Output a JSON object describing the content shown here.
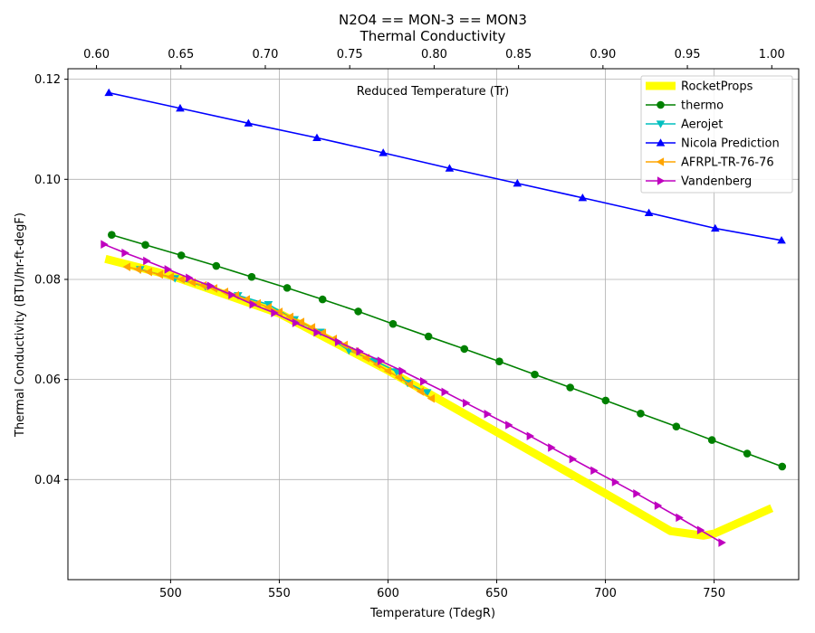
{
  "chart_data": {
    "type": "line",
    "title": [
      "N2O4 == MON-3 == MON3",
      "Thermal Conductivity"
    ],
    "xlabel": "Temperature (TdegR)",
    "ylabel": "Thermal Conductivity (BTU/hr-ft-degF)",
    "xlim": [
      452.77,
      788.9
    ],
    "ylim": [
      0.02,
      0.1221
    ],
    "xticks": [
      500,
      550,
      600,
      650,
      700,
      750
    ],
    "yticks": [
      0.04,
      0.06,
      0.08,
      0.1,
      0.12
    ],
    "top_axis": {
      "label": "Reduced Temperature (Tr)",
      "ticks": [
        "0.60",
        "0.65",
        "0.70",
        "0.75",
        "0.80",
        "0.85",
        "0.90",
        "0.95",
        "1.00"
      ],
      "tick_values": [
        0.6,
        0.65,
        0.7,
        0.75,
        0.8,
        0.85,
        0.9,
        0.95,
        1.0
      ],
      "tc_degR": 776.52
    },
    "grid": true,
    "legend_position": "top-right",
    "series": [
      {
        "name": "RocketProps",
        "color": "#ffff00",
        "marker": "none",
        "line_width": 9,
        "x": [
          470,
          500,
          550,
          600,
          650,
          700,
          730,
          745,
          750,
          776.5
        ],
        "y": [
          0.0841,
          0.0808,
          0.0732,
          0.0618,
          0.0495,
          0.0372,
          0.0297,
          0.0288,
          0.0292,
          0.0343
        ]
      },
      {
        "name": "thermo",
        "color": "#008000",
        "marker": "circle",
        "x": [
          472.9,
          488.4,
          504.9,
          521.0,
          537.3,
          553.6,
          569.9,
          586.3,
          602.3,
          618.6,
          635.1,
          651.2,
          667.5,
          683.8,
          700.1,
          716.2,
          732.6,
          749.0,
          765.2,
          781.3
        ],
        "y": [
          0.0889,
          0.0869,
          0.0848,
          0.0827,
          0.0805,
          0.0783,
          0.076,
          0.0736,
          0.0711,
          0.0686,
          0.0661,
          0.0636,
          0.061,
          0.0584,
          0.0558,
          0.0532,
          0.0506,
          0.0479,
          0.0452,
          0.0426
        ]
      },
      {
        "name": "Aerojet",
        "color": "#00bfbf",
        "marker": "triangle-down",
        "x": [
          486,
          502,
          516,
          531,
          545,
          557,
          569,
          582,
          594,
          604,
          609,
          618
        ],
        "y": [
          0.082,
          0.0802,
          0.0786,
          0.0768,
          0.075,
          0.072,
          0.0695,
          0.0658,
          0.0637,
          0.0616,
          0.0593,
          0.0574
        ]
      },
      {
        "name": "Nicola Prediction",
        "color": "#0000ff",
        "marker": "triangle-up",
        "x": [
          471.6,
          504.4,
          535.8,
          567.3,
          597.8,
          628.3,
          659.5,
          689.5,
          720.0,
          750.5,
          781.0
        ],
        "y": [
          0.1173,
          0.1142,
          0.1112,
          0.1083,
          0.1053,
          0.1022,
          0.0992,
          0.0963,
          0.0933,
          0.0902,
          0.0878
        ]
      },
      {
        "name": "AFRPL-TR-76-76",
        "color": "#ffa500",
        "marker": "triangle-left",
        "x": [
          480,
          485,
          490,
          495,
          500,
          505,
          510,
          515,
          520,
          525,
          530,
          535,
          540,
          545,
          550,
          555,
          560,
          565,
          570,
          575,
          580,
          585,
          590,
          595,
          600,
          605,
          610,
          615,
          620
        ],
        "y": [
          0.0825,
          0.082,
          0.0815,
          0.081,
          0.0805,
          0.08,
          0.0794,
          0.0788,
          0.0782,
          0.0775,
          0.0768,
          0.076,
          0.0752,
          0.0744,
          0.0735,
          0.0725,
          0.0715,
          0.0704,
          0.0693,
          0.0681,
          0.0669,
          0.0656,
          0.0643,
          0.063,
          0.0617,
          0.0604,
          0.059,
          0.0576,
          0.0562
        ]
      },
      {
        "name": "Vandenberg",
        "color": "#bf00bf",
        "marker": "triangle-right",
        "x": [
          469.4,
          479.0,
          488.9,
          498.7,
          508.5,
          518.3,
          528.1,
          537.8,
          547.7,
          557.5,
          567.3,
          577.1,
          586.9,
          596.7,
          606.5,
          616.3,
          626.1,
          635.9,
          645.7,
          655.5,
          665.3,
          675.1,
          684.9,
          694.7,
          704.5,
          714.3,
          724.1,
          733.9,
          743.7,
          753.5
        ],
        "y": [
          0.087,
          0.0853,
          0.0837,
          0.082,
          0.0803,
          0.0787,
          0.0769,
          0.075,
          0.0733,
          0.0713,
          0.0694,
          0.0675,
          0.0656,
          0.0637,
          0.0617,
          0.0596,
          0.0575,
          0.0553,
          0.0531,
          0.0509,
          0.0487,
          0.0464,
          0.0441,
          0.0418,
          0.0395,
          0.0372,
          0.0348,
          0.0324,
          0.0299,
          0.0274
        ]
      }
    ]
  }
}
